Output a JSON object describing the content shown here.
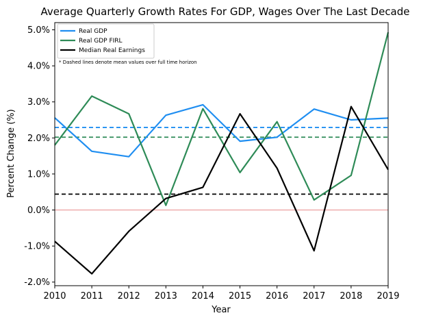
{
  "chart_data": {
    "type": "line",
    "title": "Average Quarterly Growth Rates For GDP, Wages Over The Last Decade",
    "xlabel": "Year",
    "ylabel": "Percent Change (%)",
    "x": [
      2010,
      2011,
      2012,
      2013,
      2014,
      2015,
      2016,
      2017,
      2018,
      2019
    ],
    "xlim": [
      2010,
      2019
    ],
    "ylim": [
      -2.1,
      5.2
    ],
    "x_ticks": [
      "2010",
      "2011",
      "2012",
      "2013",
      "2014",
      "2015",
      "2016",
      "2017",
      "2018",
      "2019"
    ],
    "y_ticks": [
      {
        "value": -2.0,
        "label": "-2.0%"
      },
      {
        "value": -1.0,
        "label": "-1.0%"
      },
      {
        "value": 0.0,
        "label": "0.0%"
      },
      {
        "value": 1.0,
        "label": "1.0%"
      },
      {
        "value": 2.0,
        "label": "2.0%"
      },
      {
        "value": 3.0,
        "label": "3.0%"
      },
      {
        "value": 4.0,
        "label": "4.0%"
      },
      {
        "value": 5.0,
        "label": "5.0%"
      }
    ],
    "grid": false,
    "legend_placement": "top-left",
    "note": "* Dashed lines denote mean values over full time horizon",
    "zero_line": {
      "value": 0.0,
      "color": "#e06666"
    },
    "series": [
      {
        "name": "Real GDP",
        "color": "#1f8ef1",
        "values": [
          2.56,
          1.63,
          1.48,
          2.63,
          2.92,
          1.91,
          2.02,
          2.8,
          2.5,
          2.55
        ],
        "mean": 2.29
      },
      {
        "name": "Real GDP FIRL",
        "color": "#2e8b57",
        "values": [
          1.8,
          3.16,
          2.67,
          0.13,
          2.81,
          1.04,
          2.45,
          0.28,
          0.96,
          4.93
        ],
        "mean": 2.02
      },
      {
        "name": "Median Real Earnings",
        "color": "#000000",
        "values": [
          -0.87,
          -1.77,
          -0.59,
          0.32,
          0.63,
          2.67,
          1.16,
          -1.13,
          2.87,
          1.12
        ],
        "mean": 0.44
      }
    ]
  }
}
